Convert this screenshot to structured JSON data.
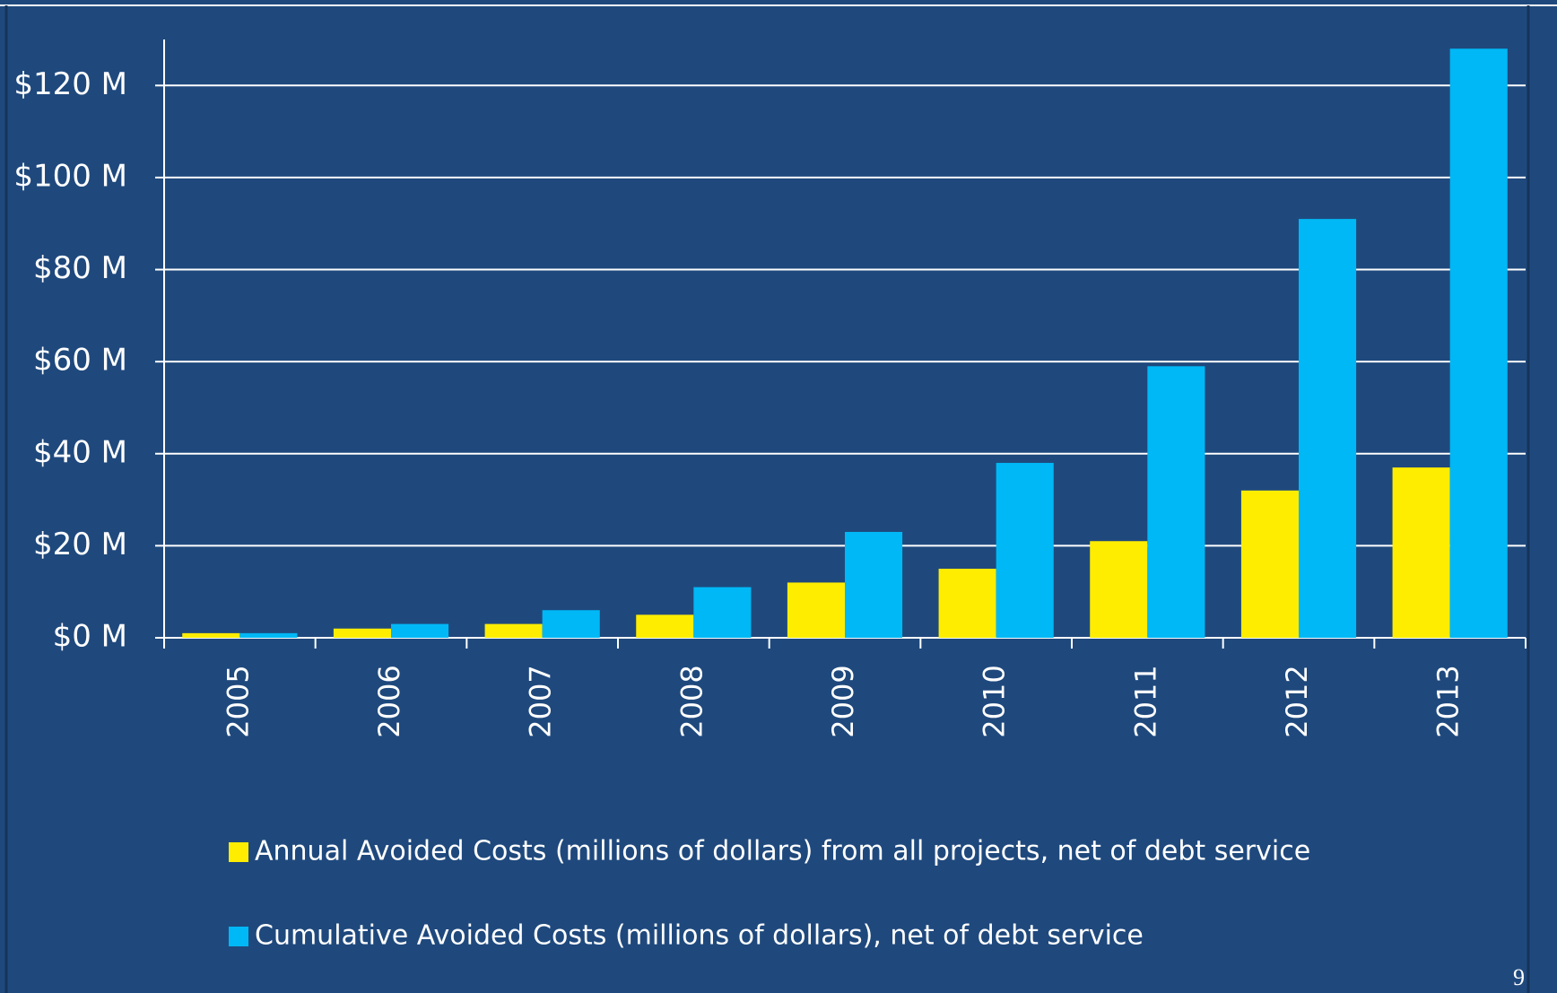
{
  "chart_data": {
    "type": "bar",
    "categories": [
      "2005",
      "2006",
      "2007",
      "2008",
      "2009",
      "2010",
      "2011",
      "2012",
      "2013"
    ],
    "series": [
      {
        "name": "Annual Avoided Costs (millions of dollars) from all projects, net of debt service",
        "color": "#ffed00",
        "values": [
          1,
          2,
          3,
          5,
          12,
          15,
          21,
          32,
          37
        ]
      },
      {
        "name": "Cumulative Avoided Costs (millions of dollars), net of debt service",
        "color": "#00b8f5",
        "values": [
          1,
          3,
          6,
          11,
          23,
          38,
          59,
          91,
          128
        ]
      }
    ],
    "ylim": [
      0,
      130
    ],
    "yticks": [
      {
        "value": 0,
        "label": "$0 M"
      },
      {
        "value": 20,
        "label": "$20 M"
      },
      {
        "value": 40,
        "label": "$40 M"
      },
      {
        "value": 60,
        "label": "$60 M"
      },
      {
        "value": 80,
        "label": "$80 M"
      },
      {
        "value": 100,
        "label": "$100 M"
      },
      {
        "value": 120,
        "label": "$120 M"
      }
    ],
    "grid": true,
    "page_number": "9"
  }
}
